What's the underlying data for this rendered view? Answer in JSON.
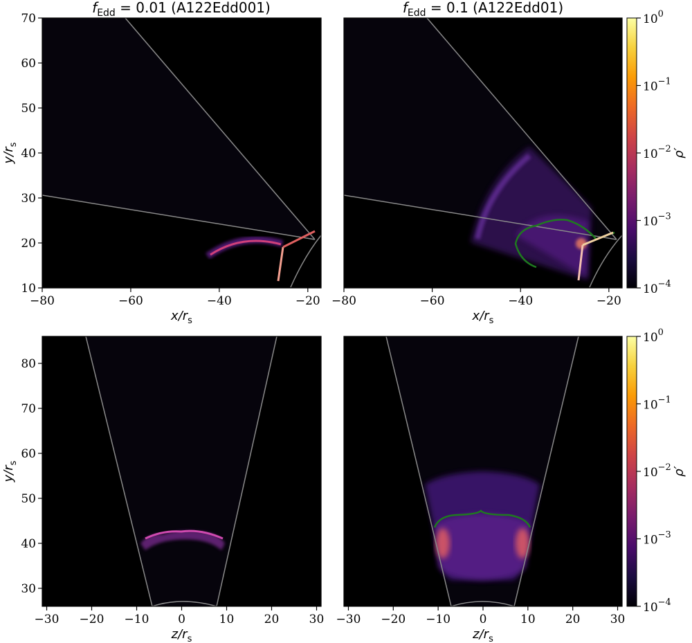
{
  "colors": {
    "background": "#000000",
    "boundary": "#8a8a8a",
    "contour": "#1f7a1f",
    "cmap": [
      "#000004",
      "#1b0c41",
      "#4a0c6b",
      "#781c6d",
      "#a52c60",
      "#cf4446",
      "#ed6925",
      "#fb9b06",
      "#f7d13d",
      "#fcffa4"
    ]
  },
  "colorbar": {
    "label": "ρ′",
    "scale": "log",
    "range": [
      0.0001,
      1
    ],
    "ticks": [
      {
        "base": "10",
        "exp": "0"
      },
      {
        "base": "10",
        "exp": "−1"
      },
      {
        "base": "10",
        "exp": "−2"
      },
      {
        "base": "10",
        "exp": "−3"
      },
      {
        "base": "10",
        "exp": "−4"
      }
    ]
  },
  "panels": [
    {
      "id": "top-left",
      "title_f": "f",
      "title_sub": "Edd",
      "title_rest": " = 0.01 (A122Edd001)",
      "xlabel_var": "x",
      "ylabel_var": "y",
      "label_unit_sub": "s",
      "xlim": [
        -80,
        -17
      ],
      "ylim": [
        10,
        70
      ],
      "xticks": [
        "−80",
        "−60",
        "−40",
        "−20"
      ],
      "yticks": [
        "10",
        "20",
        "30",
        "40",
        "50",
        "60",
        "70"
      ]
    },
    {
      "id": "top-right",
      "title_f": "f",
      "title_sub": "Edd",
      "title_rest": " = 0.1 (A122Edd01)",
      "xlabel_var": "x",
      "ylabel_var": "y",
      "label_unit_sub": "s",
      "xlim": [
        -80,
        -17
      ],
      "ylim": [
        10,
        70
      ],
      "xticks": [
        "−80",
        "−60",
        "−40",
        "−20"
      ],
      "yticks": []
    },
    {
      "id": "bottom-left",
      "xlabel_var": "z",
      "ylabel_var": "y",
      "label_unit_sub": "s",
      "xlim": [
        -31,
        31
      ],
      "ylim": [
        26,
        86
      ],
      "xticks": [
        "−30",
        "−20",
        "−10",
        "0",
        "10",
        "20",
        "30"
      ],
      "yticks": [
        "30",
        "40",
        "50",
        "60",
        "70",
        "80"
      ]
    },
    {
      "id": "bottom-right",
      "xlabel_var": "z",
      "ylabel_var": "y",
      "label_unit_sub": "s",
      "xlim": [
        -31,
        31
      ],
      "ylim": [
        26,
        86
      ],
      "xticks": [
        "−30",
        "−20",
        "−10",
        "0",
        "10",
        "20",
        "30"
      ],
      "yticks": []
    }
  ],
  "chart_data": [
    {
      "type": "heatmap",
      "title": "f_Edd = 0.01 (A122Edd001)",
      "xlabel": "x/r_s",
      "ylabel": "y/r_s",
      "xlim": [
        -80,
        -17
      ],
      "ylim": [
        10,
        70
      ],
      "colorbar": "ρ′",
      "color_scale": "log",
      "color_range": [
        0.0001,
        1
      ],
      "features": [
        {
          "kind": "arc shell",
          "x_range": [
            -44,
            -27
          ],
          "y_range": [
            17,
            21
          ],
          "rho_level": "1e-2 to 1e-1"
        },
        {
          "kind": "bright filaments",
          "vertex": [
            -26,
            19
          ],
          "rho_level": "1e-1"
        }
      ]
    },
    {
      "type": "heatmap",
      "title": "f_Edd = 0.1 (A122Edd01)",
      "xlabel": "x/r_s",
      "ylabel": "y/r_s",
      "xlim": [
        -80,
        -17
      ],
      "ylim": [
        10,
        70
      ],
      "colorbar": "ρ′",
      "color_scale": "log",
      "color_range": [
        0.0001,
        1
      ],
      "features": [
        {
          "kind": "extended outflow",
          "x_range": [
            -52,
            -22
          ],
          "y_range": [
            18,
            42
          ],
          "rho_level": "1e-3 to 1e-2"
        },
        {
          "kind": "green contour",
          "x_range": [
            -40,
            -20
          ],
          "y_range": [
            15,
            24
          ]
        },
        {
          "kind": "bright filaments",
          "vertex": [
            -26,
            19
          ],
          "rho_level": "1e-1"
        }
      ]
    },
    {
      "type": "heatmap",
      "xlabel": "z/r_s",
      "ylabel": "y/r_s",
      "xlim": [
        -31,
        31
      ],
      "ylim": [
        26,
        86
      ],
      "colorbar": "ρ′",
      "color_scale": "log",
      "color_range": [
        0.0001,
        1
      ],
      "features": [
        {
          "kind": "arched shell",
          "z_range": [
            -10,
            10
          ],
          "y_range": [
            39,
            44
          ],
          "rho_level": "1e-2"
        }
      ]
    },
    {
      "type": "heatmap",
      "xlabel": "z/r_s",
      "ylabel": "y/r_s",
      "xlim": [
        -31,
        31
      ],
      "ylim": [
        26,
        86
      ],
      "colorbar": "ρ′",
      "color_scale": "log",
      "color_range": [
        0.0001,
        1
      ],
      "features": [
        {
          "kind": "extended cap",
          "z_range": [
            -13,
            13
          ],
          "y_range": [
            31,
            53
          ],
          "rho_level": "1e-3 to 1e-2"
        },
        {
          "kind": "green contour",
          "z_range": [
            -10,
            10
          ],
          "y_range": [
            43,
            47
          ]
        },
        {
          "kind": "bright edge lobes",
          "z_positions": [
            -9,
            9
          ],
          "y": 40,
          "rho_level": "1e-2 to 1e-1"
        }
      ]
    }
  ]
}
